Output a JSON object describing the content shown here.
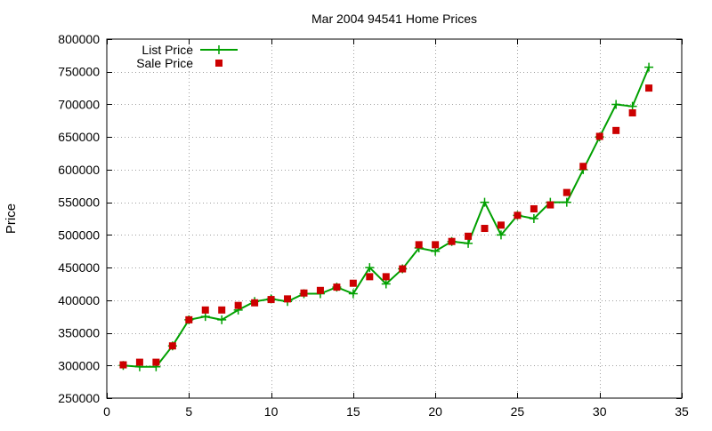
{
  "chart_data": {
    "type": "line",
    "title": "Mar 2004 94541 Home Prices",
    "xlabel": "",
    "ylabel": "Price",
    "xlim": [
      0,
      35
    ],
    "ylim": [
      250000,
      800000
    ],
    "x_ticks": [
      0,
      5,
      10,
      15,
      20,
      25,
      30,
      35
    ],
    "y_ticks": [
      250000,
      300000,
      350000,
      400000,
      450000,
      500000,
      550000,
      600000,
      650000,
      700000,
      750000,
      800000
    ],
    "grid": true,
    "legend_position": "top-left",
    "series": [
      {
        "name": "List Price",
        "style": "line+cross",
        "color": "#00a000",
        "x": [
          1,
          2,
          3,
          4,
          5,
          6,
          7,
          8,
          9,
          10,
          11,
          12,
          13,
          14,
          15,
          16,
          17,
          18,
          19,
          20,
          21,
          22,
          23,
          24,
          25,
          26,
          27,
          28,
          29,
          30,
          31,
          32,
          33
        ],
        "values": [
          300000,
          298000,
          298000,
          330000,
          370000,
          375000,
          370000,
          385000,
          398000,
          402000,
          398000,
          410000,
          410000,
          420000,
          410000,
          450000,
          425000,
          448000,
          480000,
          475000,
          490000,
          487000,
          550000,
          500000,
          530000,
          525000,
          550000,
          550000,
          600000,
          650000,
          700000,
          697000,
          757000
        ]
      },
      {
        "name": "Sale Price",
        "style": "square",
        "color": "#cc0000",
        "x": [
          1,
          2,
          3,
          4,
          5,
          6,
          7,
          8,
          9,
          10,
          11,
          12,
          13,
          14,
          15,
          16,
          17,
          18,
          19,
          20,
          21,
          22,
          23,
          24,
          25,
          26,
          27,
          28,
          29,
          30,
          31,
          32,
          33
        ],
        "values": [
          301000,
          305000,
          305000,
          330000,
          370000,
          385000,
          385000,
          392000,
          396000,
          401000,
          402000,
          411000,
          415000,
          420000,
          426000,
          436000,
          436000,
          448000,
          485000,
          485000,
          490000,
          498000,
          510000,
          515000,
          530000,
          540000,
          546000,
          565000,
          605000,
          651000,
          660000,
          687000,
          725000
        ]
      }
    ]
  }
}
